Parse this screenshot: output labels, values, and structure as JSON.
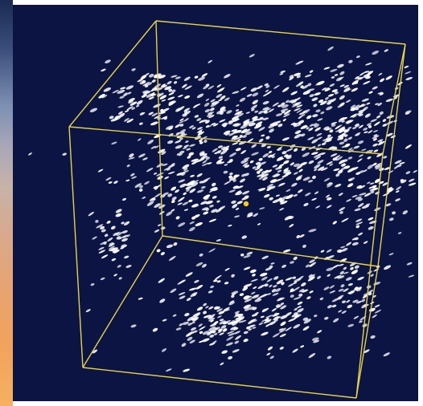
{
  "window": {
    "left_strip": "gradient-sky-sunset",
    "viewer": "3d-point-cloud-viewport"
  },
  "scene": {
    "background_color": "#0b1443",
    "bounding_box_color": "#e6d34a",
    "point_color": "#ffffff",
    "center_marker_color": "#f2cf1b",
    "projection": "perspective",
    "bounding_box": "cube"
  }
}
